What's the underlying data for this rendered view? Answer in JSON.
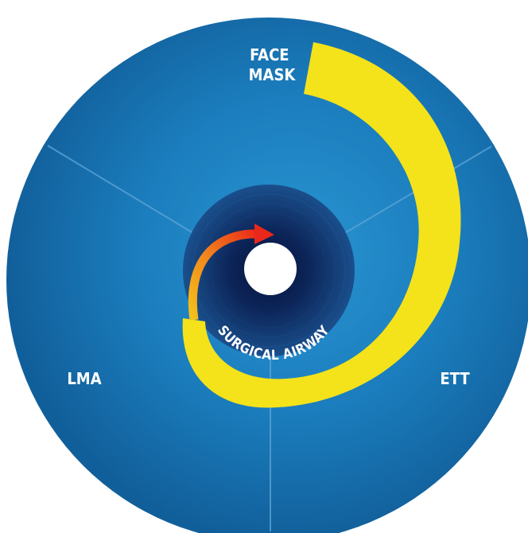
{
  "diagram": {
    "zones": [
      {
        "id": "face-mask",
        "label_lines": [
          "FACE",
          "MASK"
        ]
      },
      {
        "id": "lma",
        "label": "LMA"
      },
      {
        "id": "ett",
        "label": "ETT"
      }
    ],
    "center_label": "SURGICAL AIRWAY"
  },
  "colors": {
    "disc_light": "#1f88c8",
    "disc_mid": "#1875b3",
    "disc_dark": "#0f5f98",
    "divider": "#5aa3d6",
    "funnel_outer": "#154c8a",
    "funnel_inner": "#091a4a",
    "spiral": "#f4e21a",
    "arrow_orange": "#f29a1c",
    "arrow_red": "#e8321a",
    "text": "#ffffff",
    "hole": "#ffffff"
  }
}
